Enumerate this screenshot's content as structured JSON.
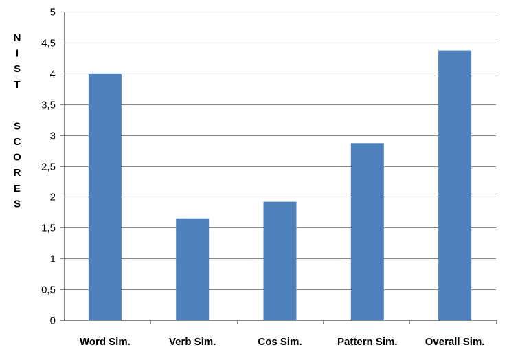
{
  "chart_data": {
    "type": "bar",
    "categories": [
      "Word Sim.",
      "Verb Sim.",
      "Cos Sim.",
      "Pattern Sim.",
      "Overall Sim."
    ],
    "values": [
      4.0,
      1.65,
      1.92,
      2.87,
      4.37
    ],
    "ylabel_lines": [
      "NIST",
      "SCORES"
    ],
    "ylim": [
      0,
      5
    ],
    "yticks": [
      0,
      0.5,
      1,
      1.5,
      2,
      2.5,
      3,
      3.5,
      4,
      4.5,
      5
    ],
    "ytick_labels": [
      "0",
      "0,5",
      "1",
      "1,5",
      "2",
      "2,5",
      "3",
      "3,5",
      "4",
      "4,5",
      "5"
    ],
    "grid": true,
    "legend": "none",
    "bar_color": "#4f81bd",
    "grid_color": "#868686"
  }
}
